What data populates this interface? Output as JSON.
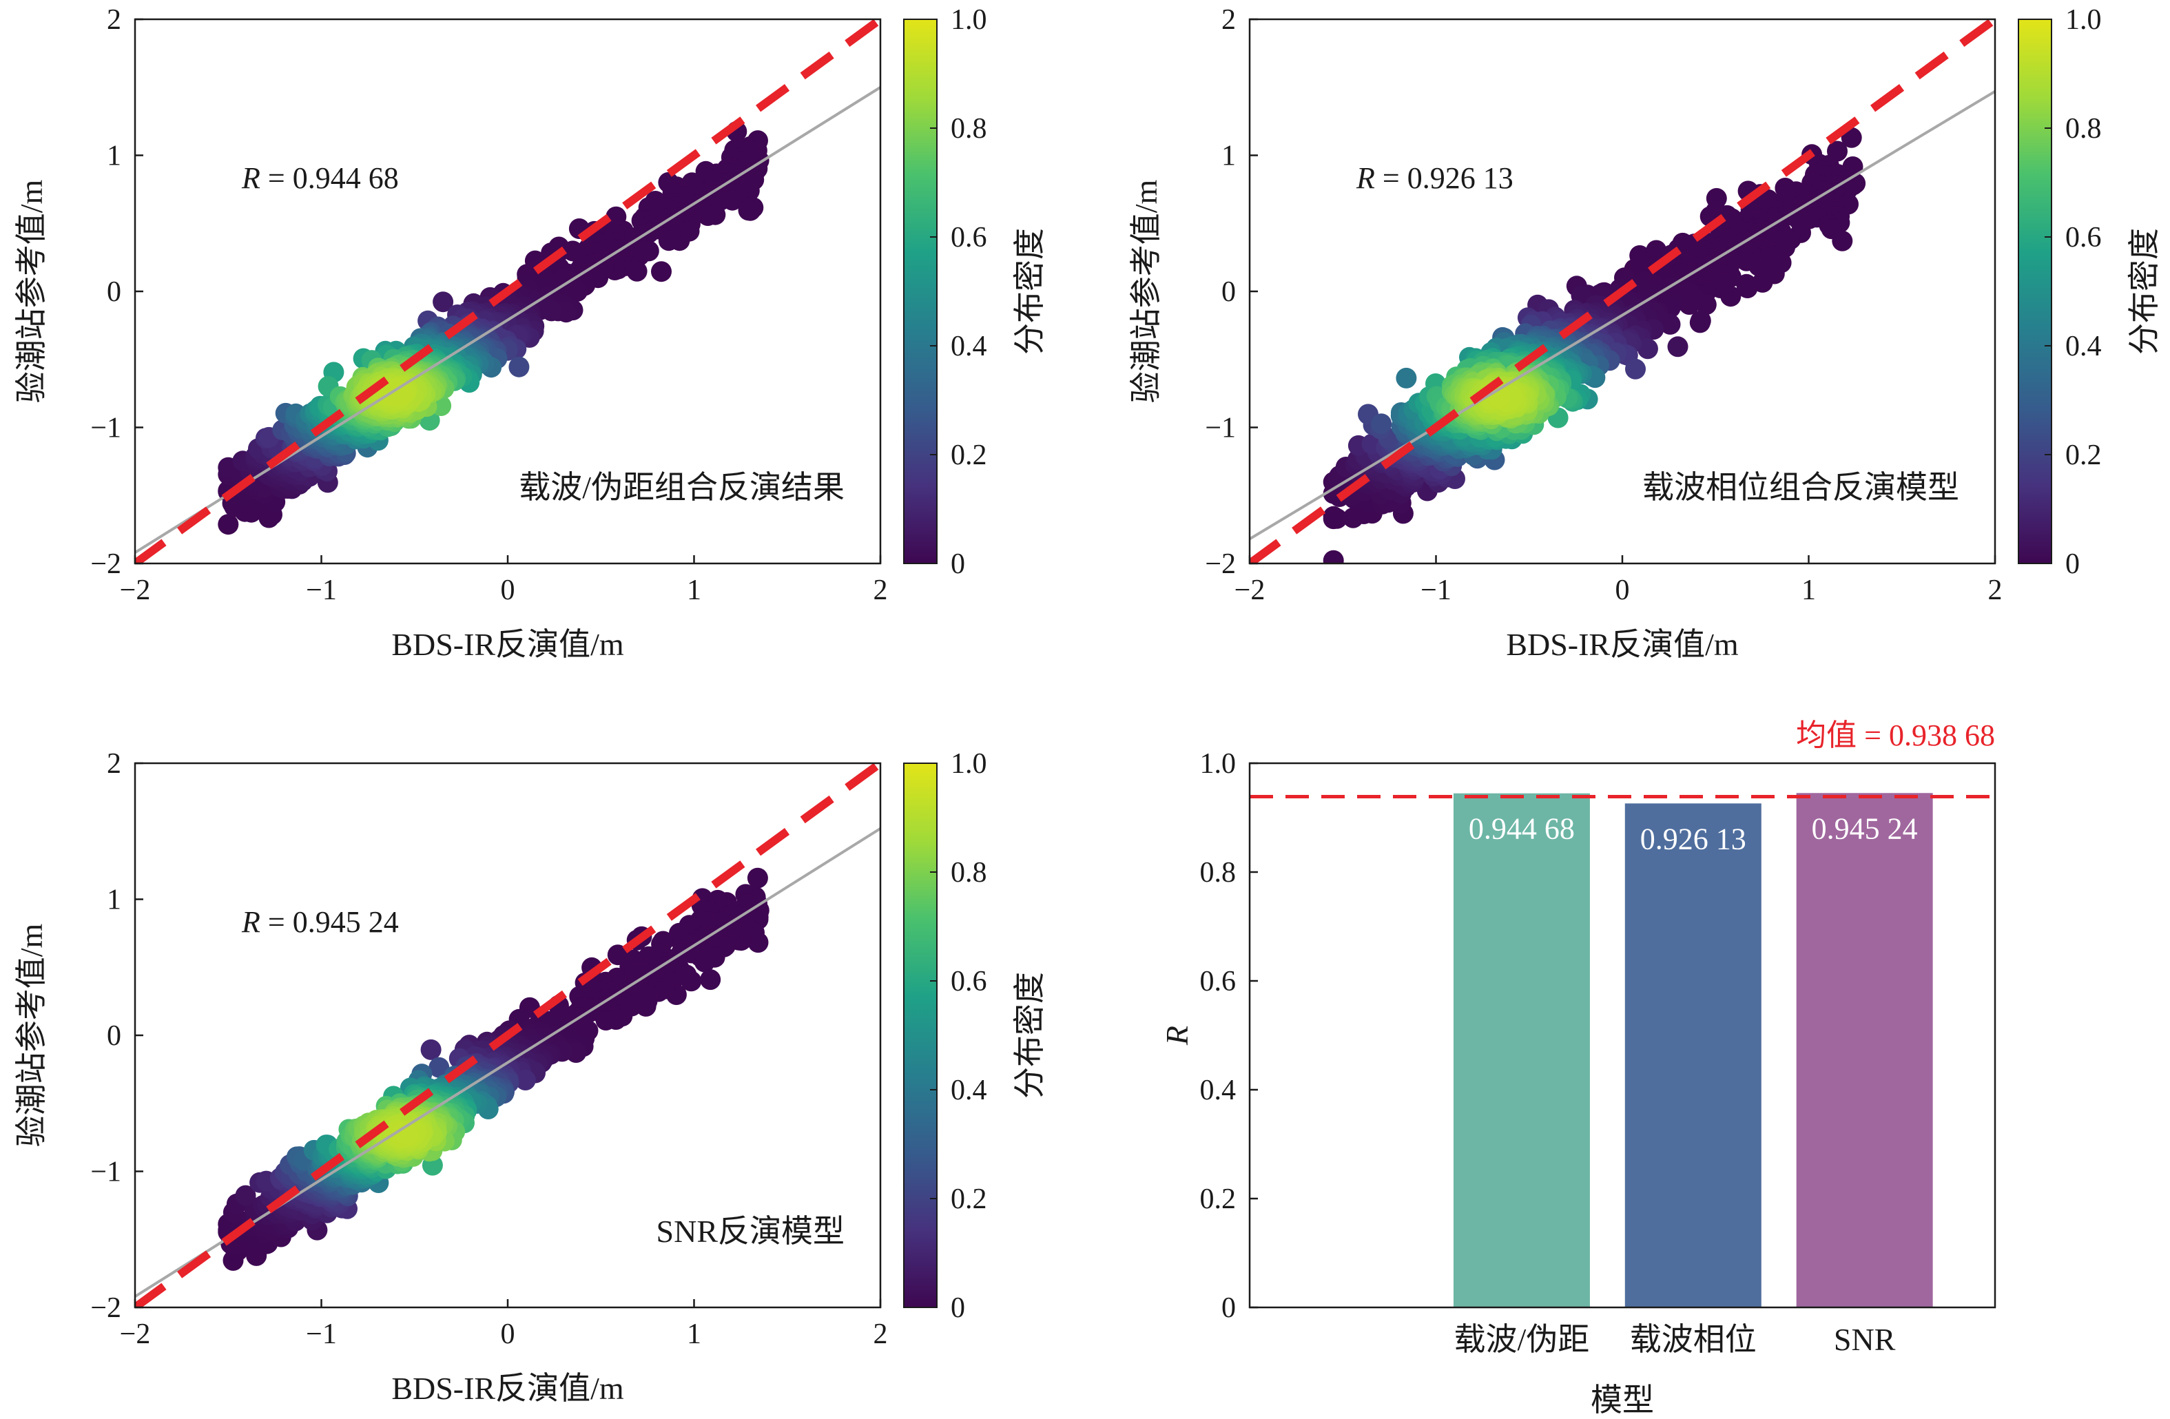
{
  "colors": {
    "identity_line": "#e8232a",
    "fit_line": "#a8a8a8",
    "mean_line": "#e8232a",
    "bar_values": "#ffffff",
    "colormap": [
      "#3e0751",
      "#46327e",
      "#365c8d",
      "#277f8e",
      "#1fa187",
      "#4ac16d",
      "#a0da39",
      "#e2e418"
    ]
  },
  "chart_data": [
    {
      "type": "scatter",
      "id": "panel-carrier-pseudorange",
      "xlabel": "BDS-IR反演值/m",
      "ylabel": "验潮站参考值/m",
      "xlim": [
        -2,
        2
      ],
      "ylim": [
        -2,
        2
      ],
      "xticks": [
        "−2",
        "−1",
        "0",
        "1",
        "2"
      ],
      "yticks": [
        "−2",
        "−1",
        "0",
        "1",
        "2"
      ],
      "annotation": {
        "prefix": "R",
        "text": " = 0.944 68",
        "value": 0.94468
      },
      "label": "载波/伪距组合反演结果",
      "colorbar": {
        "label": "分布密度",
        "range": [
          0,
          1
        ],
        "ticks": [
          "0",
          "0.2",
          "0.4",
          "0.6",
          "0.8",
          "1.0"
        ]
      },
      "identity_line": {
        "x": [
          -2,
          2
        ],
        "y": [
          -2,
          2
        ]
      },
      "fit_line": {
        "x": [
          -2,
          2
        ],
        "y": [
          -1.92,
          1.5
        ]
      },
      "density_center": [
        -0.6,
        -0.75
      ],
      "point_cloud": {
        "x_range": [
          -1.5,
          1.35
        ],
        "slope": 0.86,
        "intercept": -0.21,
        "spread": 0.13
      }
    },
    {
      "type": "scatter",
      "id": "panel-carrier-phase",
      "xlabel": "BDS-IR反演值/m",
      "ylabel": "验潮站参考值/m",
      "xlim": [
        -2,
        2
      ],
      "ylim": [
        -2,
        2
      ],
      "xticks": [
        "−2",
        "−1",
        "0",
        "1",
        "2"
      ],
      "yticks": [
        "−2",
        "−1",
        "0",
        "1",
        "2"
      ],
      "annotation": {
        "prefix": "R",
        "text": " = 0.926 13",
        "value": 0.92613
      },
      "label": "载波相位组合反演模型",
      "colorbar": {
        "label": "分布密度",
        "range": [
          0,
          1
        ],
        "ticks": [
          "0",
          "0.2",
          "0.4",
          "0.6",
          "0.8",
          "1.0"
        ]
      },
      "identity_line": {
        "x": [
          -2,
          2
        ],
        "y": [
          -2,
          2
        ]
      },
      "fit_line": {
        "x": [
          -2,
          2
        ],
        "y": [
          -1.82,
          1.47
        ]
      },
      "density_center": [
        -0.65,
        -0.78
      ],
      "point_cloud": {
        "x_range": [
          -1.55,
          1.25
        ],
        "slope": 0.84,
        "intercept": -0.2,
        "spread": 0.17
      }
    },
    {
      "type": "scatter",
      "id": "panel-snr",
      "xlabel": "BDS-IR反演值/m",
      "ylabel": "验潮站参考值/m",
      "xlim": [
        -2,
        2
      ],
      "ylim": [
        -2,
        2
      ],
      "xticks": [
        "−2",
        "−1",
        "0",
        "1",
        "2"
      ],
      "yticks": [
        "−2",
        "−1",
        "0",
        "1",
        "2"
      ],
      "annotation": {
        "prefix": "R",
        "text": " = 0.945 24",
        "value": 0.94524
      },
      "label": "SNR反演模型",
      "colorbar": {
        "label": "分布密度",
        "range": [
          0,
          1
        ],
        "ticks": [
          "0",
          "0.2",
          "0.4",
          "0.6",
          "0.8",
          "1.0"
        ]
      },
      "identity_line": {
        "x": [
          -2,
          2
        ],
        "y": [
          -2,
          2
        ]
      },
      "fit_line": {
        "x": [
          -2,
          2
        ],
        "y": [
          -1.92,
          1.52
        ]
      },
      "density_center": [
        -0.55,
        -0.72
      ],
      "point_cloud": {
        "x_range": [
          -1.5,
          1.35
        ],
        "slope": 0.86,
        "intercept": -0.2,
        "spread": 0.12
      }
    },
    {
      "type": "bar",
      "id": "panel-r-comparison",
      "categories": [
        "载波/伪距",
        "载波相位",
        "SNR"
      ],
      "values": [
        0.94468,
        0.92613,
        0.94524
      ],
      "value_labels": [
        "0.944 68",
        "0.926 13",
        "0.945 24"
      ],
      "bar_colors": [
        "#6db6a6",
        "#4f6e9e",
        "#a0679e"
      ],
      "xlabel": "模型",
      "ylabel": "R",
      "ylim": [
        0,
        1
      ],
      "yticks": [
        "0",
        "0.2",
        "0.4",
        "0.6",
        "0.8",
        "1.0"
      ],
      "mean": {
        "label": "均值 = 0.938 68",
        "value": 0.93868
      }
    }
  ]
}
